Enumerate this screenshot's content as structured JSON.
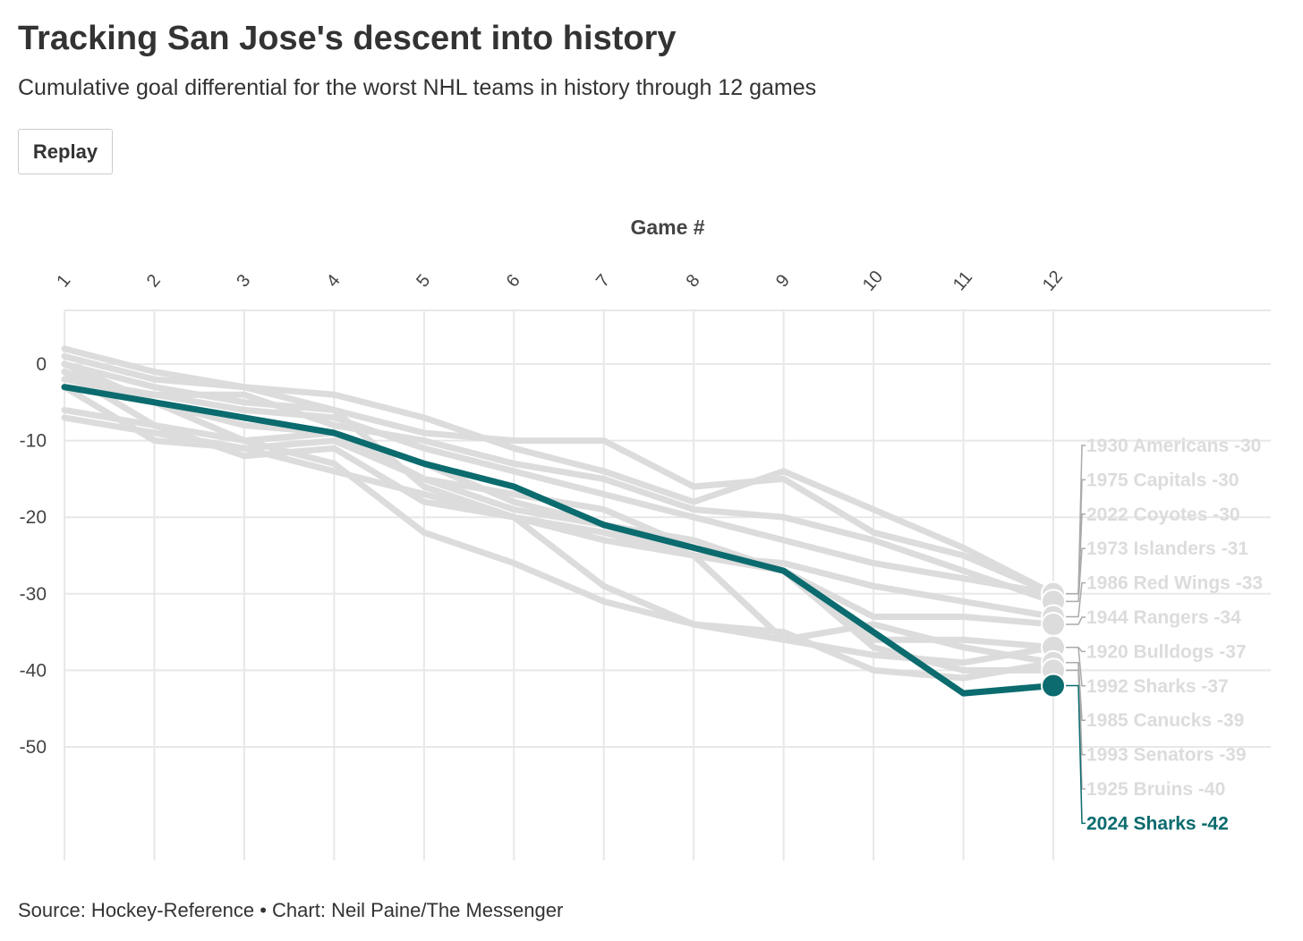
{
  "header": {
    "title": "Tracking San Jose's descent into history",
    "subtitle": "Cumulative goal differential for the worst NHL teams in history through 12 games"
  },
  "controls": {
    "replay_label": "Replay"
  },
  "footer": {
    "source": "Source: Hockey-Reference • Chart: Neil Paine/The Messenger"
  },
  "colors": {
    "highlight": "#0b6b6e",
    "muted": "#dcdcdc",
    "grid": "#e8e8e8"
  },
  "chart_data": {
    "type": "line",
    "xlabel": "Game #",
    "ylabel": "",
    "x": [
      1,
      2,
      3,
      4,
      5,
      6,
      7,
      8,
      9,
      10,
      11,
      12
    ],
    "x_ticks": [
      "1",
      "2",
      "3",
      "4",
      "5",
      "6",
      "7",
      "8",
      "9",
      "10",
      "11",
      "12"
    ],
    "y_ticks": [
      "0",
      "-10",
      "-20",
      "-30",
      "-40",
      "-50"
    ],
    "ylim": [
      -60,
      7
    ],
    "grid": true,
    "series": [
      {
        "name": "1930 Americans",
        "values": [
          1,
          -2,
          -3,
          -4,
          -7,
          -11,
          -14,
          -18,
          -14,
          -19,
          -24,
          -30
        ],
        "label": "1930 Americans -30",
        "highlight": false
      },
      {
        "name": "1975 Capitals",
        "values": [
          -2,
          -4,
          -6,
          -7,
          -11,
          -14,
          -17,
          -20,
          -23,
          -26,
          -28,
          -30
        ],
        "label": "1975 Capitals -30",
        "highlight": false
      },
      {
        "name": "2022 Coyotes",
        "values": [
          0,
          -3,
          -5,
          -6,
          -9,
          -10,
          -10,
          -16,
          -15,
          -22,
          -25,
          -30
        ],
        "label": "2022 Coyotes -30",
        "highlight": false
      },
      {
        "name": "1973 Islanders",
        "values": [
          -3,
          -4,
          -4,
          -8,
          -10,
          -13,
          -15,
          -19,
          -20,
          -23,
          -27,
          -31
        ],
        "label": "1973 Islanders -31",
        "highlight": false
      },
      {
        "name": "1986 Red Wings",
        "values": [
          -7,
          -9,
          -11,
          -14,
          -17,
          -20,
          -23,
          -25,
          -26,
          -29,
          -31,
          -33
        ],
        "label": "1986 Red Wings -33",
        "highlight": false
      },
      {
        "name": "1944 Rangers",
        "values": [
          0,
          -5,
          -8,
          -9,
          -13,
          -18,
          -21,
          -23,
          -27,
          -33,
          -33,
          -34
        ],
        "label": "1944 Rangers -34",
        "highlight": false
      },
      {
        "name": "1920 Bulldogs",
        "values": [
          -6,
          -8,
          -10,
          -9,
          -15,
          -17,
          -19,
          -24,
          -27,
          -36,
          -36,
          -37
        ],
        "label": "1920 Bulldogs -37",
        "highlight": false
      },
      {
        "name": "1992 Sharks",
        "values": [
          2,
          -1,
          -3,
          -6,
          -16,
          -20,
          -29,
          -34,
          -36,
          -38,
          -39,
          -37
        ],
        "label": "1992 Sharks -37",
        "highlight": false
      },
      {
        "name": "1985 Canucks",
        "values": [
          -1,
          -5,
          -10,
          -13,
          -22,
          -26,
          -31,
          -34,
          -35,
          -40,
          -41,
          -39
        ],
        "label": "1985 Canucks -39",
        "highlight": false
      },
      {
        "name": "1993 Senators",
        "values": [
          -3,
          -10,
          -11,
          -10,
          -15,
          -19,
          -21,
          -25,
          -36,
          -34,
          -37,
          -39
        ],
        "label": "1993 Senators -39",
        "highlight": false
      },
      {
        "name": "1925 Bruins",
        "values": [
          -1,
          -8,
          -12,
          -11,
          -18,
          -20,
          -22,
          -25,
          -27,
          -37,
          -40,
          -40
        ],
        "label": "1925 Bruins -40",
        "highlight": false
      },
      {
        "name": "2024 Sharks",
        "values": [
          -3,
          -5,
          -7,
          -9,
          -13,
          -16,
          -21,
          -24,
          -27,
          -35,
          -43,
          -42
        ],
        "label": "2024 Sharks -42",
        "highlight": true
      }
    ]
  }
}
